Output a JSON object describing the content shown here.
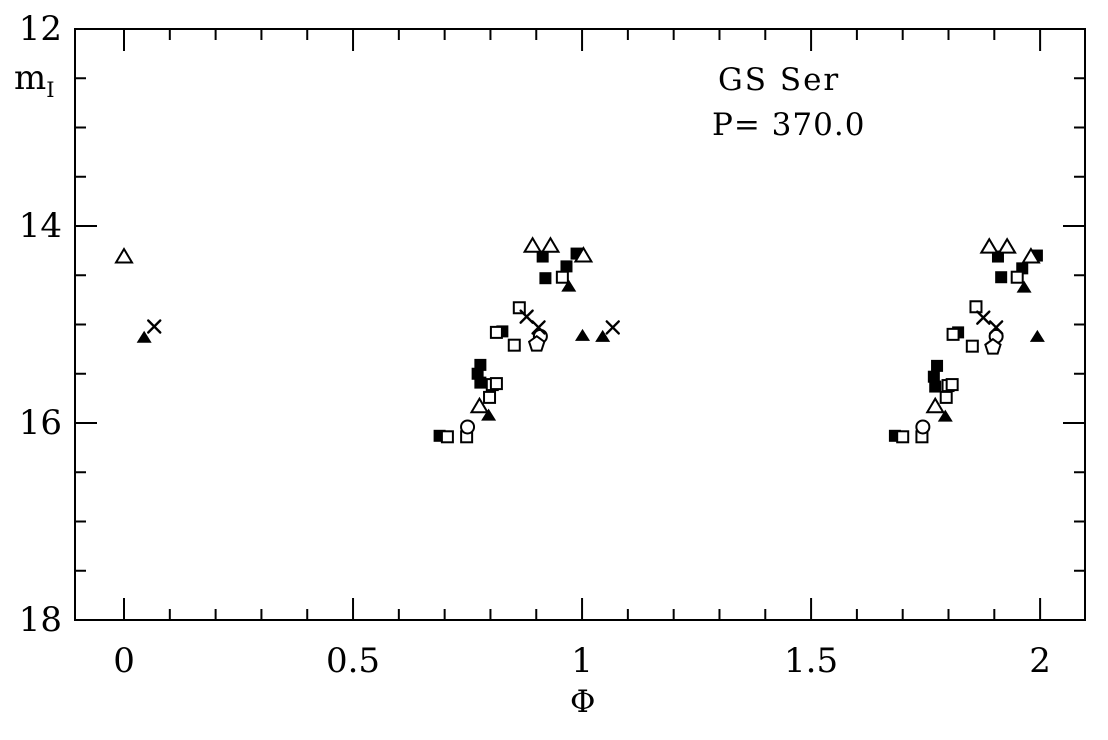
{
  "figure": {
    "star_name": "GS Ser",
    "period_label": "P= 370.0"
  },
  "axes": {
    "x_label": "Φ",
    "y_label_base": "m",
    "y_label_sub": "I"
  },
  "colors": {
    "background": "#ffffff",
    "ink": "#000000"
  },
  "chart_data": {
    "type": "scatter",
    "title": "GS Ser",
    "subtitle": "P= 370.0",
    "xlabel": "Φ",
    "ylabel": "m_I",
    "xlim": [
      -0.107,
      2.098
    ],
    "ylim": [
      12,
      18
    ],
    "y_axis_inverted_magnitudes": true,
    "grid": false,
    "legend": "none",
    "x_major_ticks": [
      {
        "v": 0,
        "label": "0"
      },
      {
        "v": 0.5,
        "label": "0.5"
      },
      {
        "v": 1,
        "label": "1"
      },
      {
        "v": 1.5,
        "label": "1.5"
      },
      {
        "v": 2,
        "label": "2"
      }
    ],
    "x_minor_step": 0.1,
    "x_minor_range": [
      0,
      2
    ],
    "y_major_ticks": [
      {
        "v": 12,
        "label": "12"
      },
      {
        "v": 14,
        "label": "14"
      },
      {
        "v": 16,
        "label": "16"
      },
      {
        "v": 18,
        "label": "18"
      }
    ],
    "y_minor_step": 0.5,
    "series": [
      {
        "name": "filled-squares",
        "marker": "square-filled",
        "points": [
          [
            0.689,
            16.13
          ],
          [
            0.772,
            15.5
          ],
          [
            0.778,
            15.41
          ],
          [
            0.778,
            15.59
          ],
          [
            0.826,
            15.07
          ],
          [
            0.914,
            14.31
          ],
          [
            0.92,
            14.53
          ],
          [
            0.966,
            14.41
          ],
          [
            0.988,
            14.28
          ],
          [
            1.683,
            16.13
          ],
          [
            1.768,
            15.53
          ],
          [
            1.775,
            15.42
          ],
          [
            1.771,
            15.63
          ],
          [
            1.821,
            15.08
          ],
          [
            1.908,
            14.31
          ],
          [
            1.915,
            14.52
          ],
          [
            1.961,
            14.43
          ],
          [
            1.993,
            14.3
          ]
        ]
      },
      {
        "name": "open-squares",
        "marker": "square-open",
        "points": [
          [
            0.706,
            16.14
          ],
          [
            0.748,
            16.14
          ],
          [
            0.798,
            15.74
          ],
          [
            0.804,
            15.61
          ],
          [
            0.813,
            15.6
          ],
          [
            0.813,
            15.08
          ],
          [
            0.852,
            15.21
          ],
          [
            0.863,
            14.83
          ],
          [
            0.957,
            14.52
          ],
          [
            1.7,
            16.14
          ],
          [
            1.742,
            16.14
          ],
          [
            1.795,
            15.74
          ],
          [
            1.799,
            15.62
          ],
          [
            1.808,
            15.61
          ],
          [
            1.81,
            15.1
          ],
          [
            1.852,
            15.22
          ],
          [
            1.86,
            14.82
          ],
          [
            1.95,
            14.52
          ]
        ]
      },
      {
        "name": "filled-triangles",
        "marker": "triangle-filled",
        "points": [
          [
            0.044,
            15.13
          ],
          [
            0.796,
            15.92
          ],
          [
            0.971,
            14.61
          ],
          [
            1.001,
            15.11
          ],
          [
            1.045,
            15.12
          ],
          [
            1.793,
            15.93
          ],
          [
            1.965,
            14.62
          ],
          [
            1.994,
            15.12
          ]
        ]
      },
      {
        "name": "open-triangles",
        "marker": "triangle-open",
        "points": [
          [
            0.0,
            14.31
          ],
          [
            0.776,
            15.83
          ],
          [
            0.892,
            14.2
          ],
          [
            0.931,
            14.2
          ],
          [
            1.003,
            14.3
          ],
          [
            1.771,
            15.83
          ],
          [
            1.889,
            14.21
          ],
          [
            1.928,
            14.21
          ],
          [
            1.98,
            14.31
          ]
        ]
      },
      {
        "name": "open-circles",
        "marker": "circle-open",
        "points": [
          [
            0.75,
            16.04
          ],
          [
            0.909,
            15.12
          ],
          [
            1.744,
            16.04
          ],
          [
            1.904,
            15.12
          ]
        ]
      },
      {
        "name": "open-pentagons",
        "marker": "pentagon-open",
        "points": [
          [
            0.901,
            15.2
          ],
          [
            1.897,
            15.23
          ]
        ]
      },
      {
        "name": "crosses",
        "marker": "cross",
        "points": [
          [
            0.066,
            15.02
          ],
          [
            0.879,
            14.92
          ],
          [
            0.905,
            15.03
          ],
          [
            1.067,
            15.03
          ],
          [
            1.876,
            14.93
          ],
          [
            1.904,
            15.03
          ]
        ]
      }
    ]
  }
}
